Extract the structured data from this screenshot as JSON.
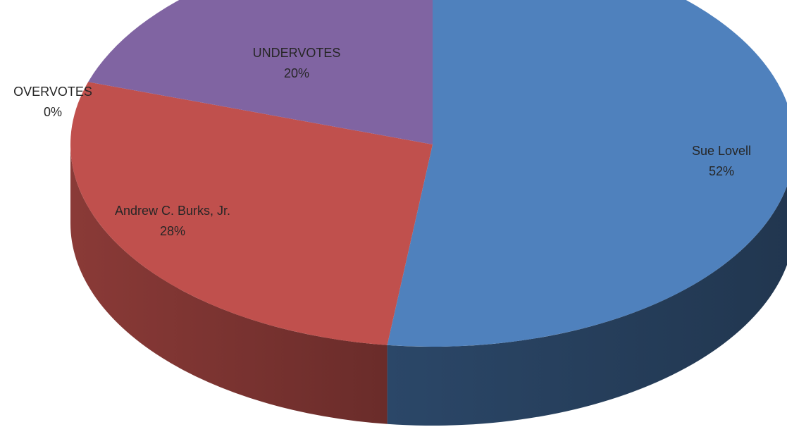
{
  "chart_data": {
    "type": "pie",
    "style": "3d",
    "slices": [
      {
        "name": "Sue Lovell",
        "value": 52,
        "label": "52%",
        "color": "#4F81BD"
      },
      {
        "name": "Andrew C. Burks, Jr.",
        "value": 28,
        "label": "28%",
        "color": "#C0504D"
      },
      {
        "name": "OVERVOTES",
        "value": 0,
        "label": "0%",
        "color": "#9BBB59"
      },
      {
        "name": "UNDERVOTES",
        "value": 20,
        "label": "20%",
        "color": "#8064A2"
      }
    ],
    "start_angle_deg": 0,
    "direction": "clockwise",
    "legend": "none",
    "title": ""
  }
}
